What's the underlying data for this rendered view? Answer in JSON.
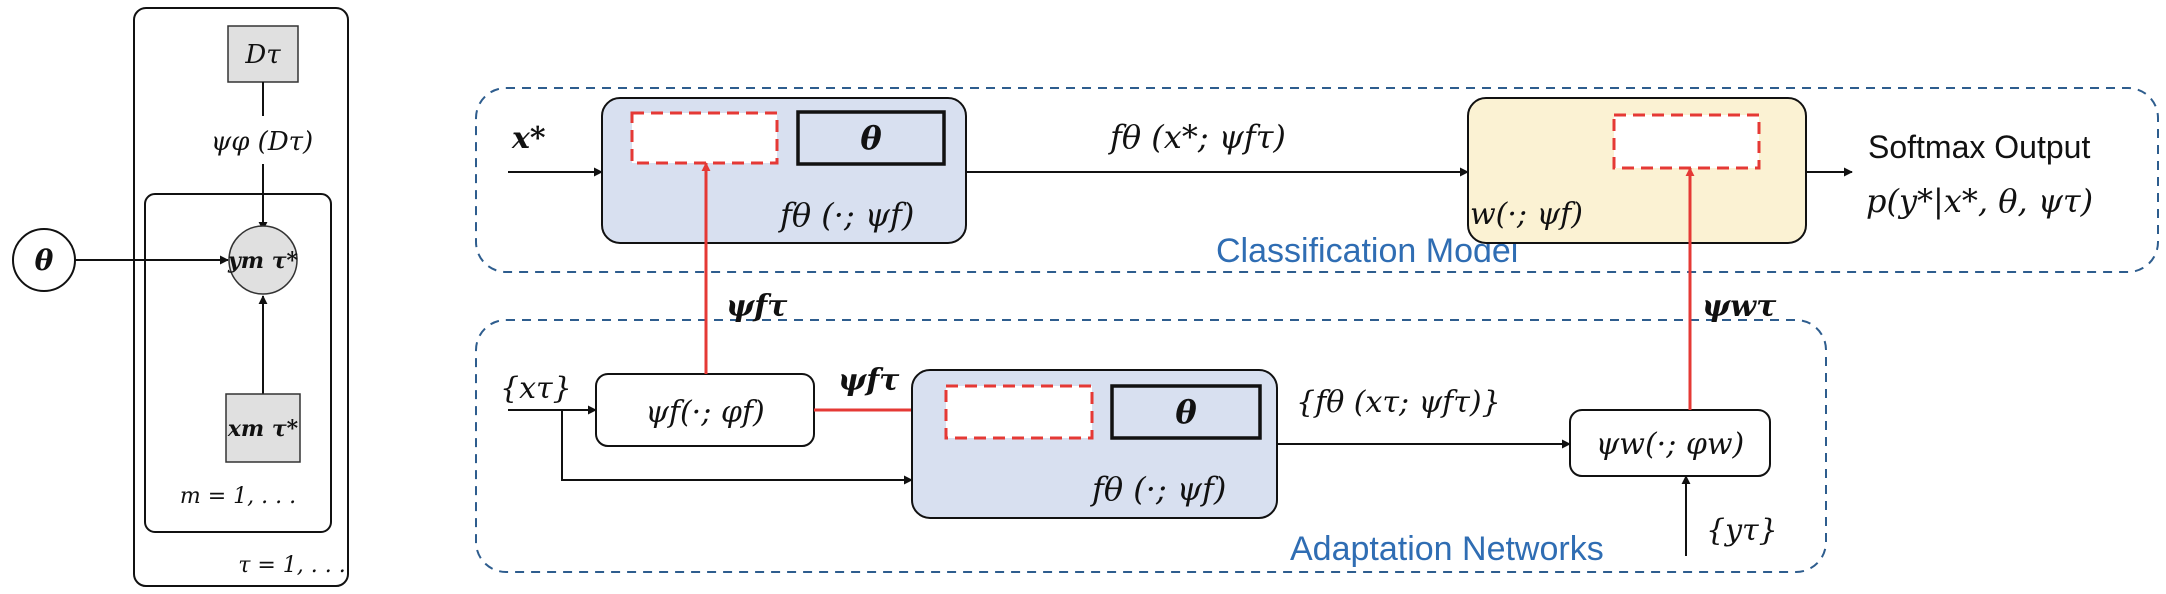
{
  "colors": {
    "adapt_box_fill": "#d8e0f0",
    "weight_box_fill": "#fbf2d3",
    "dashed_frame": "#2e5d8e",
    "accent_red": "#e53935",
    "region_label": "#2f6db3",
    "node_fill": "#e0e0e0"
  },
  "graphical_model": {
    "dataset_node": "Dτ",
    "encoder_label": "ψφ (Dτ)",
    "theta_node": "θ",
    "output_node": "ym τ*",
    "input_node": "xm τ*",
    "inner_plate_label": "m = 1, . . .",
    "outer_plate_label": "τ = 1, . . ."
  },
  "classification_model": {
    "region_label": "Classification Model",
    "input_label": "x*",
    "feature_extractor": {
      "theta_label": "θ",
      "function_label": "fθ (·; ψf)"
    },
    "features_label": "fθ (x*; ψfτ)",
    "linear_classifier": {
      "function_label": "w(·; ψf)"
    },
    "output_title": "Softmax Output",
    "output_formula": "p(y*|x*, θ, ψτ)"
  },
  "adaptation_networks": {
    "region_label": "Adaptation Networks",
    "context_inputs": "{xτ}",
    "feature_adapter": "ψf(·; φf)",
    "adapter_output": "ψfτ",
    "feature_extractor": {
      "theta_label": "θ",
      "function_label": "fθ (·; ψf)"
    },
    "context_features": "{fθ (xτ; ψfτ)}",
    "classifier_adapter": "ψw(·; φw)",
    "context_labels": "{yτ}",
    "feature_params_up": "ψfτ",
    "classifier_params_up": "ψwτ"
  }
}
